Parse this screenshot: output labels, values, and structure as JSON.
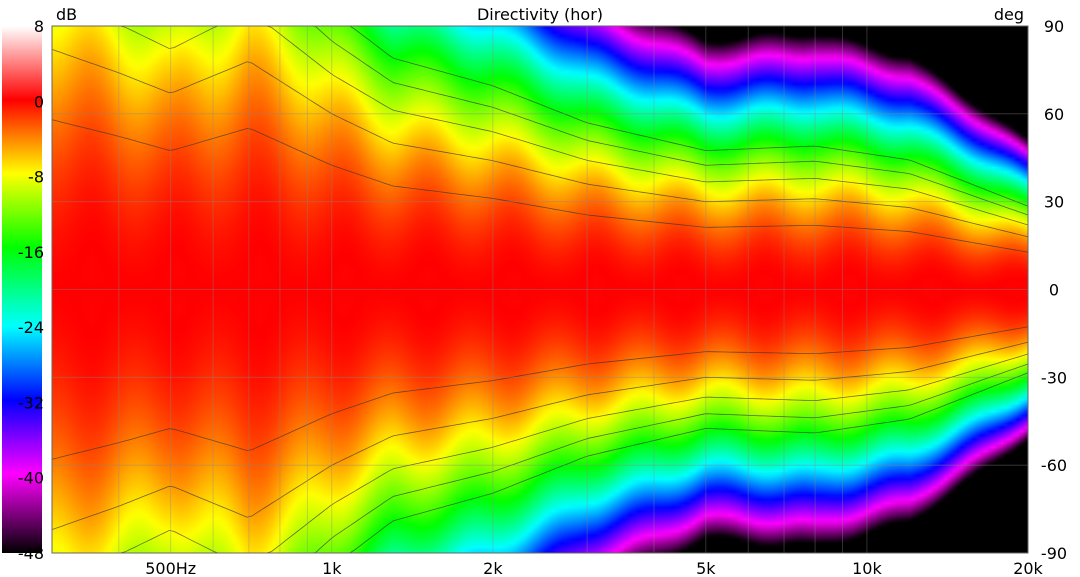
{
  "chart_data": {
    "type": "heatmap",
    "title": "Directivity (hor)",
    "xlabel": "",
    "ylabel": "deg",
    "x_scale": "log",
    "xlim": [
      300,
      20000
    ],
    "ylim": [
      -90,
      90
    ],
    "x_ticks": [
      {
        "value": 500,
        "label": "500Hz"
      },
      {
        "value": 1000,
        "label": "1k"
      },
      {
        "value": 2000,
        "label": "2k"
      },
      {
        "value": 5000,
        "label": "5k"
      },
      {
        "value": 10000,
        "label": "10k"
      },
      {
        "value": 20000,
        "label": "20k"
      }
    ],
    "y_ticks": [
      90,
      60,
      30,
      0,
      -30,
      -60,
      -90
    ],
    "colorbar": {
      "unit": "dB",
      "range": [
        -48,
        8
      ],
      "ticks": [
        8,
        0,
        -8,
        -16,
        -24,
        -32,
        -40,
        -48
      ]
    },
    "grid": true,
    "contour_step_db": 3,
    "beamwidth_minus6db_deg": [
      {
        "freq": 300,
        "deg": 82
      },
      {
        "freq": 400,
        "deg": 74
      },
      {
        "freq": 500,
        "deg": 67
      },
      {
        "freq": 700,
        "deg": 78
      },
      {
        "freq": 1000,
        "deg": 60
      },
      {
        "freq": 1300,
        "deg": 50
      },
      {
        "freq": 2000,
        "deg": 44
      },
      {
        "freq": 3000,
        "deg": 36
      },
      {
        "freq": 5000,
        "deg": 30
      },
      {
        "freq": 8000,
        "deg": 31
      },
      {
        "freq": 12000,
        "deg": 28
      },
      {
        "freq": 20000,
        "deg": 18
      }
    ]
  }
}
